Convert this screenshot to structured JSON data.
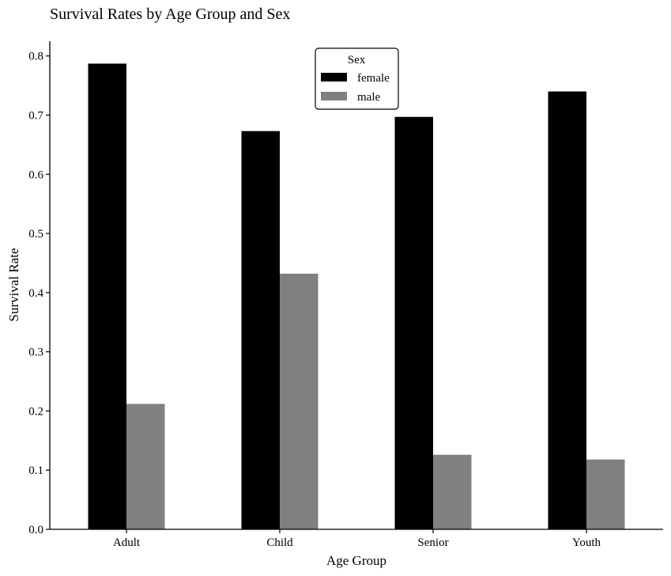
{
  "chart_data": {
    "type": "bar",
    "title": "Survival Rates by Age Group and Sex",
    "xlabel": "Age Group",
    "ylabel": "Survival Rate",
    "categories": [
      "Adult",
      "Child",
      "Senior",
      "Youth"
    ],
    "series": [
      {
        "name": "female",
        "values": [
          0.787,
          0.673,
          0.697,
          0.74
        ],
        "color": "#000000"
      },
      {
        "name": "male",
        "values": [
          0.212,
          0.432,
          0.126,
          0.118
        ],
        "color": "#808080"
      }
    ],
    "ylim": [
      0,
      0.825
    ],
    "yticks": [
      "0.0",
      "0.1",
      "0.2",
      "0.3",
      "0.4",
      "0.5",
      "0.6",
      "0.7",
      "0.8"
    ],
    "legend": {
      "title": "Sex",
      "placement": "top-center"
    },
    "grid": false
  }
}
